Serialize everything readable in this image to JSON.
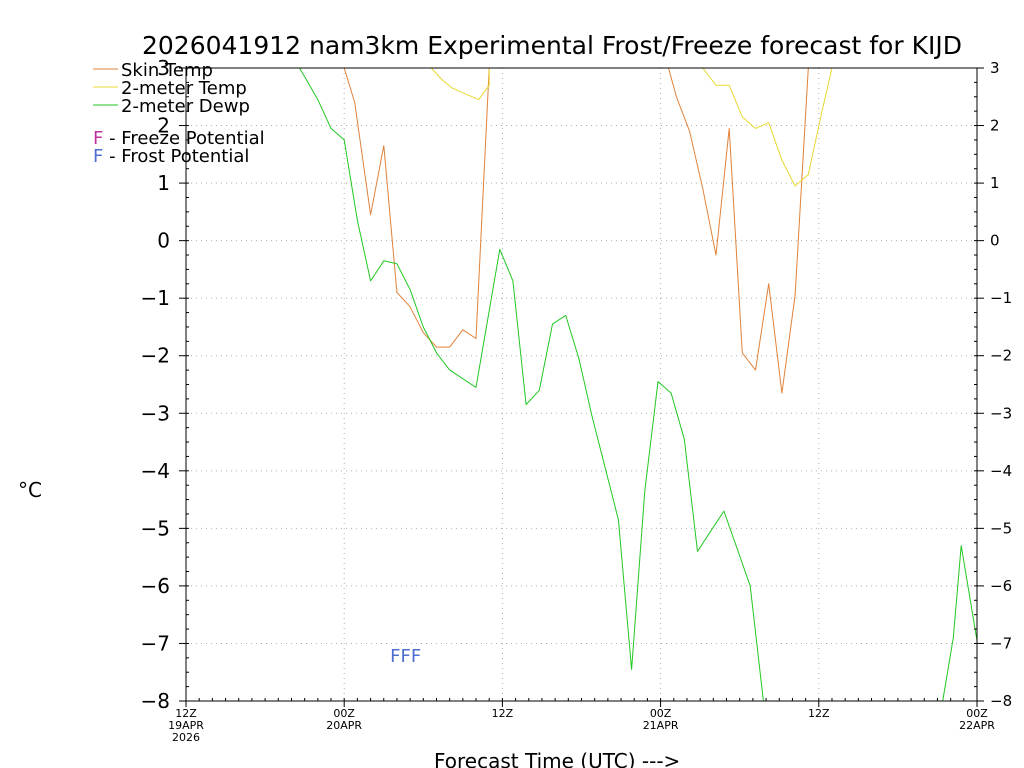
{
  "chart_data": {
    "type": "line",
    "title": "2026041912 nam3km Experimental Frost/Freeze forecast for KIJD",
    "ylabel": "°C",
    "xlabel": "Forecast Time (UTC) --->",
    "ylim": [
      -8,
      3
    ],
    "xlim": [
      0,
      60
    ],
    "y_ticks": [
      "-8",
      "-7",
      "-6",
      "-5",
      "-4",
      "-3",
      "-2",
      "-1",
      "0",
      "1",
      "2",
      "3"
    ],
    "x_ticks": [
      {
        "hour": 0,
        "lines": [
          "12Z",
          "19APR",
          "2026"
        ]
      },
      {
        "hour": 12,
        "lines": [
          "00Z",
          "20APR"
        ]
      },
      {
        "hour": 24,
        "lines": [
          "12Z"
        ]
      },
      {
        "hour": 36,
        "lines": [
          "00Z",
          "21APR"
        ]
      },
      {
        "hour": 48,
        "lines": [
          "12Z"
        ]
      },
      {
        "hour": 60,
        "lines": [
          "00Z",
          "22APR"
        ]
      }
    ],
    "grid": true,
    "legend": [
      {
        "name": "Skin Temp",
        "color": "#e0823a"
      },
      {
        "name": "2-meter Temp",
        "color": "#e8d832"
      },
      {
        "name": "2-meter Dewp",
        "color": "#22c822"
      }
    ],
    "potential_legend": [
      {
        "symbol": "F",
        "text": " - Freeze Potential",
        "color": "#c0309a"
      },
      {
        "symbol": "F",
        "text": " - Frost Potential",
        "color": "#4d6fd0"
      }
    ],
    "annotations": [
      {
        "text": "FFF",
        "hour": 17,
        "y": -7.2,
        "color": "#4d6fd0"
      }
    ],
    "series": [
      {
        "name": "Skin Temp",
        "color": "#e0823a",
        "points": [
          [
            12.0,
            3.0
          ],
          [
            12.8,
            2.4
          ],
          [
            14.0,
            0.45
          ],
          [
            15.0,
            1.65
          ],
          [
            16.0,
            -0.9
          ],
          [
            17.0,
            -1.15
          ],
          [
            18.0,
            -1.6
          ],
          [
            19.0,
            -1.85
          ],
          [
            20.0,
            -1.85
          ],
          [
            21.0,
            -1.55
          ],
          [
            22.0,
            -1.7
          ],
          [
            23.0,
            3.0
          ],
          [
            36.6,
            3.0
          ],
          [
            37.2,
            2.5
          ],
          [
            38.2,
            1.9
          ],
          [
            39.2,
            0.9
          ],
          [
            40.2,
            -0.25
          ],
          [
            41.2,
            1.95
          ],
          [
            42.2,
            -1.95
          ],
          [
            43.2,
            -2.25
          ],
          [
            44.2,
            -0.75
          ],
          [
            45.2,
            -2.65
          ],
          [
            46.2,
            -0.95
          ],
          [
            47.2,
            3.0
          ]
        ]
      },
      {
        "name": "2-meter Temp",
        "color": "#e8d832",
        "points": [
          [
            18.6,
            3.0
          ],
          [
            19.4,
            2.8
          ],
          [
            20.2,
            2.65
          ],
          [
            21.2,
            2.55
          ],
          [
            22.2,
            2.45
          ],
          [
            23.0,
            2.7
          ],
          [
            23.0,
            3.0
          ],
          [
            39.2,
            3.0
          ],
          [
            40.2,
            2.7
          ],
          [
            41.2,
            2.7
          ],
          [
            42.2,
            2.15
          ],
          [
            43.2,
            1.95
          ],
          [
            44.2,
            2.05
          ],
          [
            45.2,
            1.4
          ],
          [
            46.2,
            0.95
          ],
          [
            47.2,
            1.15
          ],
          [
            48.2,
            2.2
          ],
          [
            49.0,
            3.0
          ]
        ]
      },
      {
        "name": "2-meter Dewp",
        "color": "#22c822",
        "points": [
          [
            8.6,
            3.0
          ],
          [
            9.0,
            2.85
          ],
          [
            10.0,
            2.45
          ],
          [
            11.0,
            1.95
          ],
          [
            12.0,
            1.75
          ],
          [
            13.0,
            0.35
          ],
          [
            14.0,
            -0.7
          ],
          [
            15.0,
            -0.35
          ],
          [
            16.0,
            -0.4
          ],
          [
            17.0,
            -0.85
          ],
          [
            18.0,
            -1.5
          ],
          [
            19.0,
            -1.95
          ],
          [
            20.0,
            -2.25
          ],
          [
            21.0,
            -2.4
          ],
          [
            22.0,
            -2.55
          ],
          [
            23.8,
            -0.15
          ],
          [
            24.8,
            -0.7
          ],
          [
            25.8,
            -2.85
          ],
          [
            26.8,
            -2.6
          ],
          [
            27.8,
            -1.45
          ],
          [
            28.8,
            -1.3
          ],
          [
            29.8,
            -2.05
          ],
          [
            30.8,
            -3.05
          ],
          [
            31.8,
            -3.95
          ],
          [
            32.8,
            -4.85
          ],
          [
            33.8,
            -7.45
          ],
          [
            34.8,
            -4.35
          ],
          [
            35.8,
            -2.45
          ],
          [
            36.8,
            -2.65
          ],
          [
            37.8,
            -3.45
          ],
          [
            38.8,
            -5.4
          ],
          [
            39.8,
            -5.05
          ],
          [
            40.8,
            -4.7
          ],
          [
            41.8,
            -5.35
          ],
          [
            42.8,
            -6.0
          ],
          [
            43.8,
            -8.0
          ],
          [
            57.4,
            -8.0
          ],
          [
            58.2,
            -6.9
          ],
          [
            58.8,
            -5.3
          ],
          [
            60.0,
            -6.95
          ]
        ]
      }
    ]
  }
}
